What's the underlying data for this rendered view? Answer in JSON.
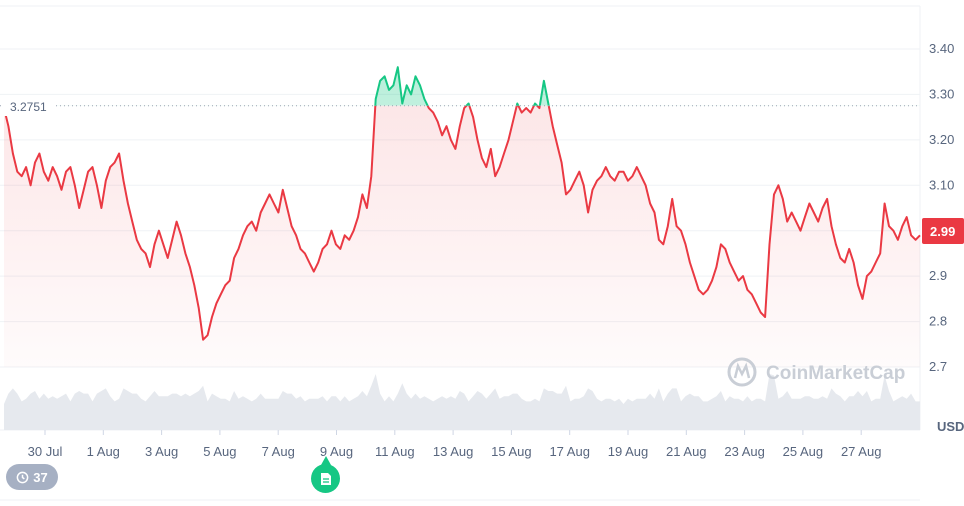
{
  "chart_data": {
    "type": "line",
    "x_labels": [
      "30 Jul",
      "1 Aug",
      "3 Aug",
      "5 Aug",
      "7 Aug",
      "9 Aug",
      "11 Aug",
      "13 Aug",
      "15 Aug",
      "17 Aug",
      "19 Aug",
      "21 Aug",
      "23 Aug",
      "25 Aug",
      "27 Aug"
    ],
    "y_ticks": [
      "3.40",
      "3.30",
      "3.20",
      "3.10",
      "2.9",
      "2.8",
      "2.7"
    ],
    "ylim": [
      2.6,
      3.46
    ],
    "reference_value": 3.2751,
    "reference_label": "3.2751",
    "current_price": 2.99,
    "current_label": "2.99",
    "unit_label": "USD",
    "series": [
      {
        "values": [
          3.27,
          3.23,
          3.17,
          3.13,
          3.12,
          3.14,
          3.1,
          3.15,
          3.17,
          3.13,
          3.11,
          3.14,
          3.12,
          3.09,
          3.13,
          3.14,
          3.1,
          3.05,
          3.09,
          3.13,
          3.14,
          3.1,
          3.05,
          3.11,
          3.14,
          3.15,
          3.17,
          3.11,
          3.06,
          3.02,
          2.98,
          2.96,
          2.95,
          2.92,
          2.97,
          3.0,
          2.97,
          2.94,
          2.98,
          3.02,
          2.99,
          2.95,
          2.92,
          2.88,
          2.83,
          2.76,
          2.77,
          2.81,
          2.84,
          2.86,
          2.88,
          2.89,
          2.94,
          2.96,
          2.99,
          3.01,
          3.02,
          3.0,
          3.04,
          3.06,
          3.08,
          3.06,
          3.04,
          3.09,
          3.05,
          3.01,
          2.99,
          2.96,
          2.95,
          2.93,
          2.91,
          2.93,
          2.96,
          2.97,
          3.0,
          2.97,
          2.96,
          2.99,
          2.98,
          3.0,
          3.03,
          3.08,
          3.05,
          3.12,
          3.29,
          3.33,
          3.34,
          3.31,
          3.32,
          3.36,
          3.28,
          3.32,
          3.3,
          3.34,
          3.32,
          3.29,
          3.27,
          3.26,
          3.24,
          3.21,
          3.23,
          3.2,
          3.18,
          3.23,
          3.27,
          3.28,
          3.25,
          3.2,
          3.16,
          3.14,
          3.18,
          3.12,
          3.14,
          3.17,
          3.2,
          3.24,
          3.28,
          3.26,
          3.27,
          3.26,
          3.28,
          3.27,
          3.33,
          3.28,
          3.23,
          3.19,
          3.15,
          3.08,
          3.09,
          3.11,
          3.13,
          3.1,
          3.04,
          3.09,
          3.11,
          3.12,
          3.14,
          3.12,
          3.11,
          3.13,
          3.13,
          3.11,
          3.12,
          3.14,
          3.12,
          3.1,
          3.06,
          3.04,
          2.98,
          2.97,
          3.01,
          3.07,
          3.01,
          3.0,
          2.97,
          2.93,
          2.9,
          2.87,
          2.86,
          2.87,
          2.89,
          2.92,
          2.97,
          2.96,
          2.93,
          2.91,
          2.89,
          2.9,
          2.87,
          2.86,
          2.84,
          2.82,
          2.81,
          2.97,
          3.08,
          3.1,
          3.07,
          3.02,
          3.04,
          3.02,
          3.0,
          3.03,
          3.06,
          3.04,
          3.02,
          3.05,
          3.07,
          3.01,
          2.97,
          2.94,
          2.93,
          2.96,
          2.93,
          2.88,
          2.85,
          2.9,
          2.91,
          2.93,
          2.95,
          3.06,
          3.01,
          3.0,
          2.98,
          3.01,
          3.03,
          2.99,
          2.98,
          2.99
        ]
      }
    ],
    "xlabel": "",
    "ylabel": "",
    "grid": true
  },
  "watermark": "CoinMarketCap",
  "badge_count": "37",
  "colors": {
    "up": "#16c784",
    "down": "#ea3943",
    "grid": "#eff2f5",
    "axis_text": "#58667e",
    "volume": "#e6e9ee"
  }
}
